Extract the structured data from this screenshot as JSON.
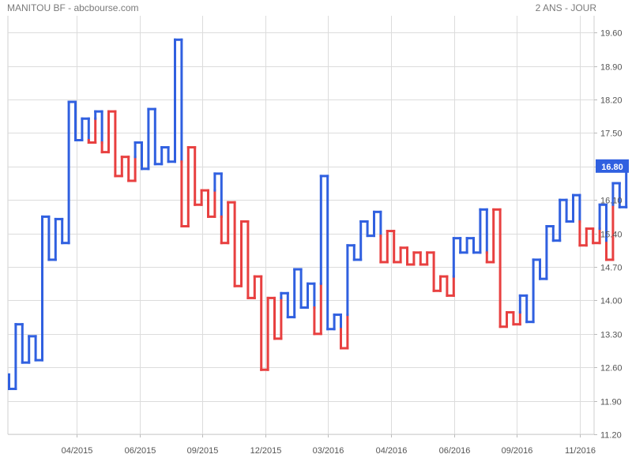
{
  "header": {
    "title": "MANITOU BF - abcbourse.com",
    "period": "2 ANS - JOUR"
  },
  "chart_data": {
    "type": "line",
    "style": "kagi",
    "ylim": [
      11.2,
      19.95
    ],
    "y_ticks": [
      "11.20",
      "11.90",
      "12.60",
      "13.30",
      "14.00",
      "14.70",
      "15.40",
      "16.10",
      "16.80",
      "17.50",
      "18.20",
      "18.90",
      "19.60"
    ],
    "x_ticks": [
      "04/2015",
      "06/2015",
      "09/2015",
      "12/2015",
      "03/2016",
      "04/2016",
      "06/2016",
      "09/2016",
      "11/2016"
    ],
    "last_value": "16.80",
    "last_value_num": 16.8,
    "colors": {
      "up": "#3060e0",
      "down": "#e84040",
      "last_badge": "#3060e0",
      "grid": "#dcdcdc",
      "text": "#555555"
    },
    "points": [
      12.45,
      12.15,
      13.5,
      12.7,
      13.25,
      12.75,
      15.75,
      14.85,
      15.7,
      15.2,
      18.15,
      17.35,
      17.8,
      17.3,
      17.95,
      17.1,
      17.95,
      16.6,
      17.0,
      16.5,
      17.3,
      16.75,
      18.0,
      16.85,
      17.2,
      16.9,
      19.45,
      15.55,
      17.2,
      16.0,
      16.3,
      15.75,
      16.65,
      15.2,
      16.05,
      14.3,
      15.65,
      14.05,
      14.5,
      12.55,
      14.05,
      13.2,
      14.15,
      13.65,
      14.65,
      13.85,
      14.35,
      13.3,
      16.6,
      13.4,
      13.7,
      13.0,
      15.15,
      14.85,
      15.65,
      15.35,
      15.85,
      14.8,
      15.45,
      14.8,
      15.1,
      14.75,
      15.0,
      14.75,
      15.0,
      14.2,
      14.5,
      14.1,
      15.3,
      15.0,
      15.3,
      15.0,
      15.9,
      14.8,
      15.9,
      13.45,
      13.75,
      13.5,
      14.1,
      13.55,
      14.85,
      14.45,
      15.55,
      15.25,
      16.1,
      15.65,
      16.2,
      15.15,
      15.5,
      15.2,
      16.0,
      14.85,
      16.45,
      15.95,
      16.8
    ]
  }
}
